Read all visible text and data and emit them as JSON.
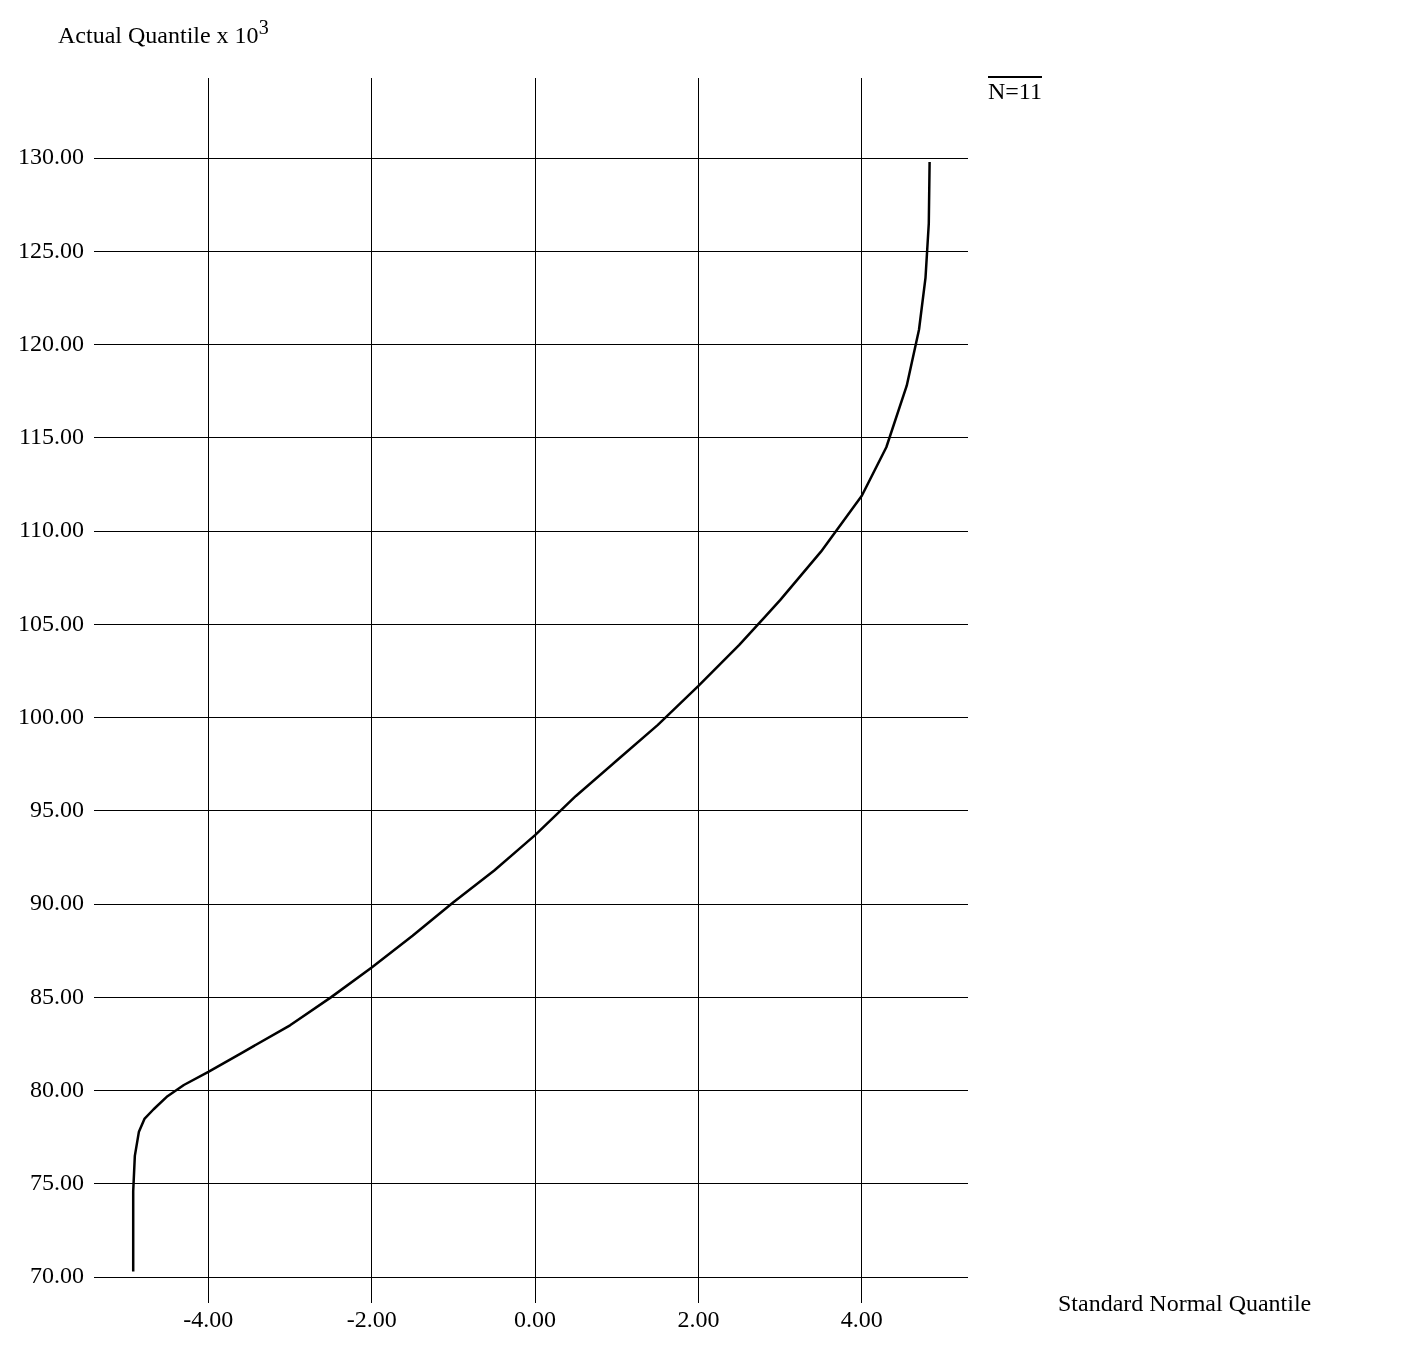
{
  "chart_data": {
    "type": "line",
    "xlabel": "Standard Normal Quantile",
    "ylabel": "Actual Quantile x 10$^{3}$",
    "annotations": [
      "N=11"
    ],
    "series": [
      {
        "color": "#000000",
        "x": [
          -4.92,
          -4.92,
          -4.9,
          -4.85,
          -4.78,
          -4.67,
          -4.5,
          -4.3,
          -4.0,
          -3.6,
          -3.0,
          -2.5,
          -2.0,
          -1.5,
          -1.0,
          -0.5,
          0.0,
          0.5,
          1.0,
          1.5,
          2.0,
          2.5,
          3.0,
          3.5,
          4.0,
          4.3,
          4.55,
          4.7,
          4.78,
          4.82,
          4.83
        ],
        "values": [
          70.3,
          74.6,
          76.5,
          77.8,
          78.5,
          79.0,
          79.7,
          80.3,
          81.0,
          82.0,
          83.5,
          85.0,
          86.6,
          88.3,
          90.1,
          91.8,
          93.7,
          95.8,
          97.7,
          99.6,
          101.7,
          103.9,
          106.3,
          108.9,
          111.9,
          114.5,
          117.8,
          120.8,
          123.6,
          126.5,
          129.8
        ]
      }
    ],
    "xlim": [
      -5.4,
      5.3
    ],
    "ylim": [
      68.6,
      134.3
    ],
    "xticks": [
      {
        "value": -4,
        "label": "-4.00"
      },
      {
        "value": -2,
        "label": "-2.00"
      },
      {
        "value": 0,
        "label": "0.00"
      },
      {
        "value": 2,
        "label": "2.00"
      },
      {
        "value": 4,
        "label": "4.00"
      }
    ],
    "yticks": [
      {
        "value": 70,
        "label": "70.00"
      },
      {
        "value": 75,
        "label": "75.00"
      },
      {
        "value": 80,
        "label": "80.00"
      },
      {
        "value": 85,
        "label": "85.00"
      },
      {
        "value": 90,
        "label": "90.00"
      },
      {
        "value": 95,
        "label": "95.00"
      },
      {
        "value": 100,
        "label": "100.00"
      },
      {
        "value": 105,
        "label": "105.00"
      },
      {
        "value": 110,
        "label": "110.00"
      },
      {
        "value": 115,
        "label": "115.00"
      },
      {
        "value": 120,
        "label": "120.00"
      },
      {
        "value": 125,
        "label": "125.00"
      },
      {
        "value": 130,
        "label": "130.00"
      }
    ],
    "grid": true,
    "legend": false,
    "marker": "none",
    "line_style": "solid"
  }
}
